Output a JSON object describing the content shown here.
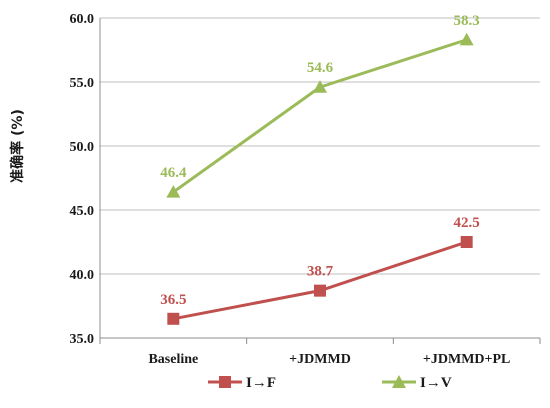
{
  "chart_data": {
    "type": "line",
    "title": "",
    "xlabel": "",
    "ylabel": "准确率 (%)",
    "categories": [
      "Baseline",
      "+JDMMD",
      "+JDMMD+PL"
    ],
    "ylim": [
      35.0,
      60.0
    ],
    "yticks": [
      "35.0",
      "40.0",
      "45.0",
      "50.0",
      "55.0",
      "60.0"
    ],
    "grid": "horizontal",
    "legend_position": "bottom",
    "series": [
      {
        "name": "I→F",
        "values": [
          36.5,
          38.7,
          42.5
        ],
        "labels": [
          "36.5",
          "38.7",
          "42.5"
        ],
        "color": "#c0504d",
        "marker": "square"
      },
      {
        "name": "I→V",
        "values": [
          46.4,
          54.6,
          58.3
        ],
        "labels": [
          "46.4",
          "54.6",
          "58.3"
        ],
        "color": "#9bbb59",
        "marker": "triangle"
      }
    ]
  }
}
